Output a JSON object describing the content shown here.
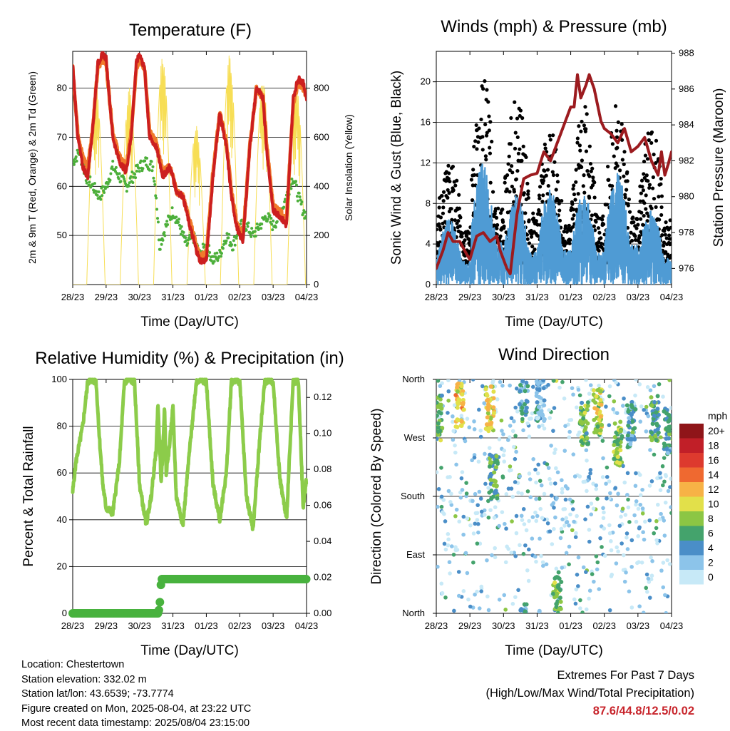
{
  "colors": {
    "temp2m": "#cc1f1f",
    "temp9m": "#f07a2c",
    "dew": "#4caf3a",
    "solar": "#f7de55",
    "wind": "#4f9bd4",
    "gust": "#000000",
    "pressure": "#9c1b1f",
    "rh": "#8ccc4a",
    "precip": "#48b23e",
    "extremes": "#c8252c"
  },
  "time_ticks": [
    "28/23",
    "29/23",
    "30/23",
    "31/23",
    "01/23",
    "02/23",
    "03/23",
    "04/23"
  ],
  "time_xlabel": "Time (Day/UTC)",
  "chart_data": [
    {
      "id": "temperature",
      "type": "line",
      "title": "Temperature (F)",
      "xlabel": "Time (Day/UTC)",
      "ylabel": "2m & 9m T (Red, Orange) & 2m Td (Green)",
      "y2label": "Solar Insolation (Yellow)",
      "x_ticks": [
        "28/23",
        "29/23",
        "30/23",
        "31/23",
        "01/23",
        "02/23",
        "03/23",
        "04/23"
      ],
      "ylim": [
        40,
        87.5
      ],
      "y_ticks": [
        50,
        60,
        70,
        80
      ],
      "y2lim": [
        0,
        950
      ],
      "y2_ticks": [
        0,
        200,
        400,
        600,
        800
      ],
      "grid": "horizontal",
      "series": [
        {
          "name": "2m T",
          "axis": "left",
          "color_key": "temp2m",
          "x": [
            0,
            0.15,
            0.3,
            0.45,
            0.6,
            0.75,
            0.9,
            1.0,
            1.2,
            1.4,
            1.6,
            1.75,
            1.9,
            2.0,
            2.15,
            2.3,
            2.5,
            2.7,
            2.9,
            3.0,
            3.1,
            3.3,
            3.5,
            3.7,
            3.8,
            3.9,
            4.0,
            4.2,
            4.4,
            4.6,
            4.75,
            4.9,
            5.0,
            5.1,
            5.3,
            5.5,
            5.7,
            5.8,
            5.95,
            6.0,
            6.2,
            6.4,
            6.6,
            6.75,
            6.9,
            7.0
          ],
          "y": [
            85,
            70,
            64,
            62,
            72,
            85,
            87,
            86,
            70,
            65,
            63,
            70,
            85,
            87,
            84,
            70,
            68,
            62,
            64,
            62,
            59,
            58,
            52,
            47,
            45,
            44.8,
            45,
            62,
            75,
            68,
            58,
            52,
            50,
            49,
            68,
            80,
            78,
            68,
            58,
            55,
            54,
            52,
            78,
            82,
            81,
            78
          ]
        },
        {
          "name": "9m T",
          "axis": "left",
          "color_key": "temp9m",
          "x": [
            0,
            0.15,
            0.3,
            0.45,
            0.6,
            0.75,
            0.9,
            1.0,
            1.2,
            1.4,
            1.6,
            1.75,
            1.9,
            2.0,
            2.15,
            2.3,
            2.5,
            2.7,
            2.9,
            3.0,
            3.1,
            3.3,
            3.5,
            3.7,
            3.8,
            3.9,
            4.0,
            4.2,
            4.4,
            4.6,
            4.75,
            4.9,
            5.0,
            5.1,
            5.3,
            5.5,
            5.7,
            5.8,
            5.95,
            6.0,
            6.2,
            6.4,
            6.6,
            6.75,
            6.9,
            7.0
          ],
          "y": [
            84,
            71,
            66,
            64,
            72,
            84,
            86,
            85,
            71,
            66,
            64,
            71,
            84,
            86,
            84,
            71,
            69,
            63,
            64,
            62,
            59,
            58,
            53,
            48,
            46,
            46,
            46,
            63,
            75,
            69,
            59,
            53,
            51,
            50,
            68,
            80,
            78,
            69,
            59,
            56,
            55,
            53,
            77,
            81,
            80,
            78
          ]
        },
        {
          "name": "2m Td",
          "axis": "left",
          "color_key": "dew",
          "x": [
            0,
            0.2,
            0.4,
            0.6,
            0.8,
            1.0,
            1.2,
            1.4,
            1.6,
            1.8,
            2.0,
            2.2,
            2.4,
            2.5,
            2.6,
            2.8,
            3.0,
            3.2,
            3.4,
            3.6,
            3.8,
            4.0,
            4.2,
            4.4,
            4.6,
            4.8,
            5.0,
            5.2,
            5.4,
            5.6,
            5.8,
            6.0,
            6.2,
            6.4,
            6.6,
            6.75,
            6.9,
            7.0
          ],
          "y": [
            65,
            67,
            62,
            60,
            58,
            60,
            64,
            62,
            60,
            62,
            64,
            65,
            64,
            58,
            48,
            52,
            55,
            52,
            48,
            50,
            46,
            48,
            45,
            46,
            50,
            48,
            52,
            52,
            50,
            52,
            54,
            52,
            54,
            58,
            62,
            58,
            55,
            54
          ]
        },
        {
          "name": "Solar",
          "axis": "right",
          "color_key": "solar",
          "days": [
            0,
            1,
            2,
            3,
            4,
            5,
            6
          ],
          "peaks": [
            810,
            800,
            935,
            650,
            935,
            840,
            820
          ]
        }
      ]
    },
    {
      "id": "winds",
      "type": "line",
      "title": "Winds (mph) & Pressure (mb)",
      "xlabel": "Time (Day/UTC)",
      "ylabel": "Sonic Wind & Gust (Blue, Black)",
      "y2label": "Station Pressure (Maroon)",
      "x_ticks": [
        "28/23",
        "29/23",
        "30/23",
        "31/23",
        "01/23",
        "02/23",
        "03/23",
        "04/23"
      ],
      "ylim": [
        0,
        23
      ],
      "y_ticks": [
        0,
        4,
        8,
        12,
        16,
        20
      ],
      "y2lim": [
        975.1,
        988.1
      ],
      "y2_ticks": [
        976,
        978,
        980,
        982,
        984,
        986,
        988
      ],
      "grid": "horizontal",
      "series": [
        {
          "name": "Pressure",
          "axis": "right",
          "color_key": "pressure",
          "x": [
            0,
            0.2,
            0.35,
            0.5,
            0.7,
            0.9,
            1.0,
            1.2,
            1.4,
            1.6,
            1.8,
            1.9,
            2.0,
            2.1,
            2.2,
            2.4,
            2.6,
            2.8,
            3.0,
            3.2,
            3.4,
            3.6,
            3.8,
            4.0,
            4.1,
            4.2,
            4.3,
            4.45,
            4.55,
            4.7,
            4.9,
            5.0,
            5.2,
            5.4,
            5.6,
            5.8,
            6.0,
            6.2,
            6.4,
            6.6,
            6.7,
            6.8,
            6.9,
            7.0
          ],
          "y": [
            976,
            977,
            978,
            977.5,
            977.5,
            976.8,
            976.5,
            977.8,
            978,
            977.5,
            977.8,
            977,
            976.5,
            976,
            975.7,
            979,
            981,
            981.2,
            981.3,
            982.5,
            982,
            983,
            984,
            985,
            985,
            986.8,
            985.5,
            986.2,
            986.8,
            986,
            984.2,
            983.8,
            983.5,
            983,
            983.8,
            982.5,
            982.8,
            983.3,
            982,
            981.2,
            982.5,
            981.2,
            981.8,
            982.5
          ]
        },
        {
          "name": "Sonic Wind",
          "axis": "left",
          "color_key": "wind",
          "peaks": [
            6.5,
            12,
            9,
            9.5,
            9,
            11,
            7.5,
            7
          ]
        },
        {
          "name": "Gust",
          "axis": "left",
          "color_key": "gust",
          "peaks": [
            13,
            20.9,
            19.5,
            15.5,
            18,
            17.8,
            16.5,
            15.5
          ]
        }
      ]
    },
    {
      "id": "humidity",
      "type": "line",
      "title": "Relative Humidity (%) & Precipitation (in)",
      "xlabel": "Time (Day/UTC)",
      "ylabel": "Percent & Total Rainfall",
      "x_ticks": [
        "28/23",
        "29/23",
        "30/23",
        "31/23",
        "01/23",
        "02/23",
        "03/23",
        "04/23"
      ],
      "ylim": [
        0,
        100
      ],
      "y_ticks": [
        0,
        20,
        40,
        60,
        80,
        100
      ],
      "y2lim": [
        0,
        0.13
      ],
      "y2_ticks": [
        "0.00",
        "0.02",
        "0.04",
        "0.06",
        "0.08",
        "0.10",
        "0.12"
      ],
      "grid": "horizontal",
      "series": [
        {
          "name": "RH",
          "axis": "left",
          "color_key": "rh",
          "x": [
            0,
            0.1,
            0.3,
            0.45,
            0.55,
            0.7,
            0.8,
            0.9,
            1.0,
            1.2,
            1.4,
            1.55,
            1.7,
            1.85,
            2.0,
            2.2,
            2.35,
            2.5,
            2.55,
            2.65,
            2.75,
            2.8,
            2.9,
            3.0,
            3.1,
            3.3,
            3.5,
            3.7,
            3.8,
            4.0,
            4.2,
            4.4,
            4.6,
            4.75,
            4.9,
            5.0,
            5.2,
            5.4,
            5.6,
            5.75,
            5.9,
            6.0,
            6.2,
            6.4,
            6.6,
            6.75,
            6.9,
            7.0
          ],
          "y": [
            52,
            65,
            80,
            99,
            100,
            99,
            75,
            55,
            45,
            43,
            65,
            99,
            100,
            99,
            55,
            38,
            50,
            70,
            90,
            55,
            88,
            60,
            72,
            88,
            50,
            38,
            70,
            99,
            100,
            99,
            55,
            40,
            60,
            99,
            100,
            99,
            50,
            36,
            75,
            99,
            100,
            99,
            58,
            40,
            99,
            100,
            45,
            58
          ]
        },
        {
          "name": "Total Rainfall",
          "axis": "right",
          "color_key": "precip",
          "x": [
            0,
            2.55,
            2.6,
            2.65,
            7.0
          ],
          "y": [
            0,
            0,
            0.003,
            0.019,
            0.019
          ]
        }
      ]
    },
    {
      "id": "direction",
      "type": "scatter",
      "title": "Wind Direction",
      "xlabel": "Time (Day/UTC)",
      "ylabel": "Direction (Colored By Speed)",
      "x_ticks": [
        "28/23",
        "29/23",
        "30/23",
        "31/23",
        "01/23",
        "02/23",
        "03/23",
        "04/23"
      ],
      "y_ticks": [
        "North",
        "East",
        "South",
        "West",
        "North"
      ],
      "ylim": [
        0,
        360
      ],
      "grid": "horizontal",
      "legend_title": "mph",
      "legend_labels": [
        "0",
        "2",
        "4",
        "6",
        "8",
        "10",
        "12",
        "14",
        "16",
        "18",
        "20+"
      ],
      "legend_colors": [
        "#c7e9f7",
        "#8cc4ea",
        "#4a8ec8",
        "#44a36c",
        "#8cc644",
        "#e2e04a",
        "#f7b246",
        "#ef6930",
        "#dd3a2e",
        "#c11f28",
        "#8f1519"
      ],
      "clusters": [
        {
          "day": 0.05,
          "dir": 300,
          "speed": 7
        },
        {
          "day": 0.7,
          "dir": 320,
          "speed": 11
        },
        {
          "day": 1.6,
          "dir": 315,
          "speed": 10
        },
        {
          "day": 1.7,
          "dir": 210,
          "speed": 6
        },
        {
          "day": 2.6,
          "dir": 340,
          "speed": 4
        },
        {
          "day": 3.1,
          "dir": 330,
          "speed": 3
        },
        {
          "day": 3.6,
          "dir": 30,
          "speed": 8
        },
        {
          "day": 4.4,
          "dir": 290,
          "speed": 7
        },
        {
          "day": 4.8,
          "dir": 310,
          "speed": 9
        },
        {
          "day": 5.4,
          "dir": 260,
          "speed": 8
        },
        {
          "day": 5.8,
          "dir": 290,
          "speed": 5
        },
        {
          "day": 6.5,
          "dir": 300,
          "speed": 6
        },
        {
          "day": 6.9,
          "dir": 280,
          "speed": 5
        }
      ]
    }
  ],
  "footer": {
    "location": "Location: Chestertown",
    "elevation": "Station elevation: 332.02 m",
    "latlon": "Station lat/lon: 43.6539; -73.7774",
    "created": "Figure created on Mon, 2025-08-04, at 23:22 UTC",
    "recent": "Most recent data timestamp: 2025/08/04 23:15:00"
  },
  "extremes": {
    "title": "Extremes For Past 7 Days",
    "subtitle": "(High/Low/Max Wind/Total Precipitation)",
    "values": "87.6/44.8/12.5/0.02"
  }
}
